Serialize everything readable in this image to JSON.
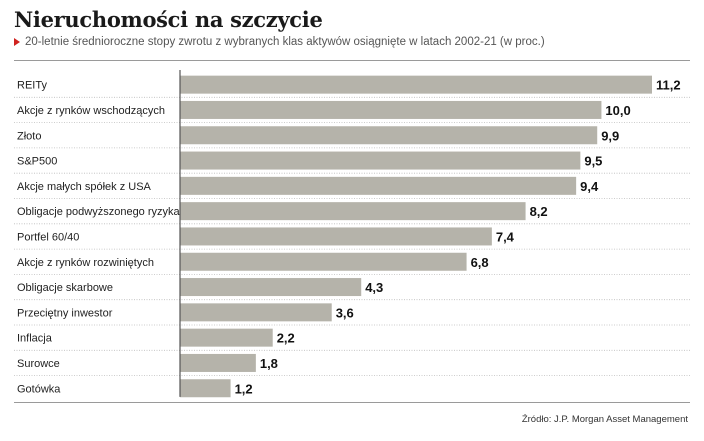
{
  "header": {
    "title": "Nieruchomości na szczycie",
    "subtitle": "20-letnie średnioroczne stopy zwrotu z wybranych klas aktywów osiągnięte w latach 2002-21 (w proc.)"
  },
  "footer": {
    "source": "Źródło: J.P. Morgan Asset Management"
  },
  "colors": {
    "bar": "#b5b3aa",
    "separator": "#bdbdbd",
    "axis": "#555555",
    "accent": "#d0221f"
  },
  "chart_data": {
    "type": "bar",
    "orientation": "horizontal",
    "categories": [
      "REITy",
      "Akcje z rynków wschodzących",
      "Złoto",
      "S&P500",
      "Akcje małych spółek z USA",
      "Obligacje podwyższonego ryzyka",
      "Portfel 60/40",
      "Akcje z rynków rozwiniętych",
      "Obligacje skarbowe",
      "Przeciętny inwestor",
      "Inflacja",
      "Surowce",
      "Gotówka"
    ],
    "values": [
      11.2,
      10.0,
      9.9,
      9.5,
      9.4,
      8.2,
      7.4,
      6.8,
      4.3,
      3.6,
      2.2,
      1.8,
      1.2
    ],
    "value_labels": [
      "11,2",
      "10,0",
      "9,9",
      "9,5",
      "9,4",
      "8,2",
      "7,4",
      "6,8",
      "4,3",
      "3,6",
      "2,2",
      "1,8",
      "1,2"
    ],
    "xlim": [
      0,
      11.2
    ],
    "grid": false,
    "legend": "none"
  }
}
